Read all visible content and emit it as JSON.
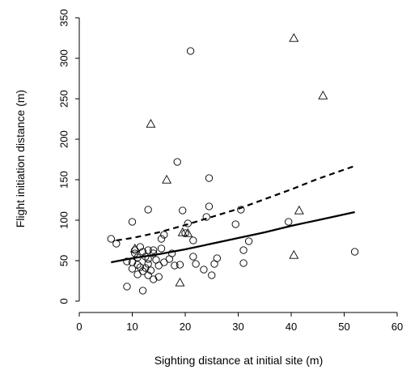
{
  "chart_data": {
    "type": "scatter",
    "xlabel": "Sighting distance at initial site (m)",
    "ylabel": "Flight initiation distance (m)",
    "xlim": [
      0,
      60
    ],
    "ylim": [
      0,
      350
    ],
    "xticks": [
      0,
      10,
      20,
      30,
      40,
      50,
      60
    ],
    "yticks": [
      0,
      50,
      100,
      150,
      200,
      250,
      300,
      350
    ],
    "grid": false,
    "series": [
      {
        "marker": "circle",
        "points": [
          [
            6,
            77
          ],
          [
            7,
            71
          ],
          [
            9,
            49
          ],
          [
            9,
            18
          ],
          [
            10,
            98
          ],
          [
            10,
            48
          ],
          [
            10,
            40
          ],
          [
            10.5,
            63
          ],
          [
            10.5,
            59
          ],
          [
            11,
            54
          ],
          [
            11,
            45
          ],
          [
            11,
            33
          ],
          [
            11.5,
            67
          ],
          [
            11.5,
            42
          ],
          [
            12,
            61
          ],
          [
            12,
            37
          ],
          [
            12,
            13
          ],
          [
            12.5,
            55
          ],
          [
            12.5,
            41
          ],
          [
            13,
            113
          ],
          [
            13,
            63
          ],
          [
            13,
            52
          ],
          [
            13,
            46
          ],
          [
            13,
            32
          ],
          [
            13.5,
            38
          ],
          [
            14,
            63
          ],
          [
            14,
            59
          ],
          [
            14,
            27
          ],
          [
            14.5,
            51
          ],
          [
            15,
            44
          ],
          [
            15,
            30
          ],
          [
            15.5,
            77
          ],
          [
            15.5,
            65
          ],
          [
            16,
            82
          ],
          [
            16,
            48
          ],
          [
            17,
            52
          ],
          [
            17.5,
            59
          ],
          [
            18,
            44
          ],
          [
            18.5,
            172
          ],
          [
            19,
            45
          ],
          [
            19.5,
            112
          ],
          [
            20,
            84
          ],
          [
            20.5,
            96
          ],
          [
            21,
            309
          ],
          [
            21.5,
            75
          ],
          [
            21.5,
            55
          ],
          [
            22,
            46
          ],
          [
            23.5,
            39
          ],
          [
            24,
            104
          ],
          [
            24.5,
            117
          ],
          [
            24.5,
            152
          ],
          [
            25,
            32
          ],
          [
            25.5,
            46
          ],
          [
            26,
            53
          ],
          [
            29.5,
            95
          ],
          [
            30.5,
            113
          ],
          [
            31,
            63
          ],
          [
            31,
            47
          ],
          [
            32,
            74
          ],
          [
            39.5,
            98
          ],
          [
            52,
            61
          ]
        ]
      },
      {
        "marker": "triangle",
        "points": [
          [
            10.5,
            65
          ],
          [
            13.5,
            219
          ],
          [
            16.5,
            150
          ],
          [
            19,
            23
          ],
          [
            19.5,
            85
          ],
          [
            20.5,
            84
          ],
          [
            40.5,
            57
          ],
          [
            40.5,
            325
          ],
          [
            41.5,
            112
          ],
          [
            46,
            254
          ]
        ]
      }
    ],
    "curves": [
      {
        "style": "solid",
        "x": [
          6,
          10,
          15,
          20,
          25,
          30,
          35,
          40,
          45,
          52
        ],
        "y": [
          48,
          53,
          58,
          64,
          71,
          78,
          85,
          93,
          100,
          110
        ]
      },
      {
        "style": "dashed",
        "x": [
          7,
          10,
          15,
          20,
          25,
          30,
          35,
          40,
          45,
          52
        ],
        "y": [
          75,
          78,
          85,
          94,
          104,
          114,
          126,
          138,
          151,
          167
        ]
      }
    ]
  }
}
